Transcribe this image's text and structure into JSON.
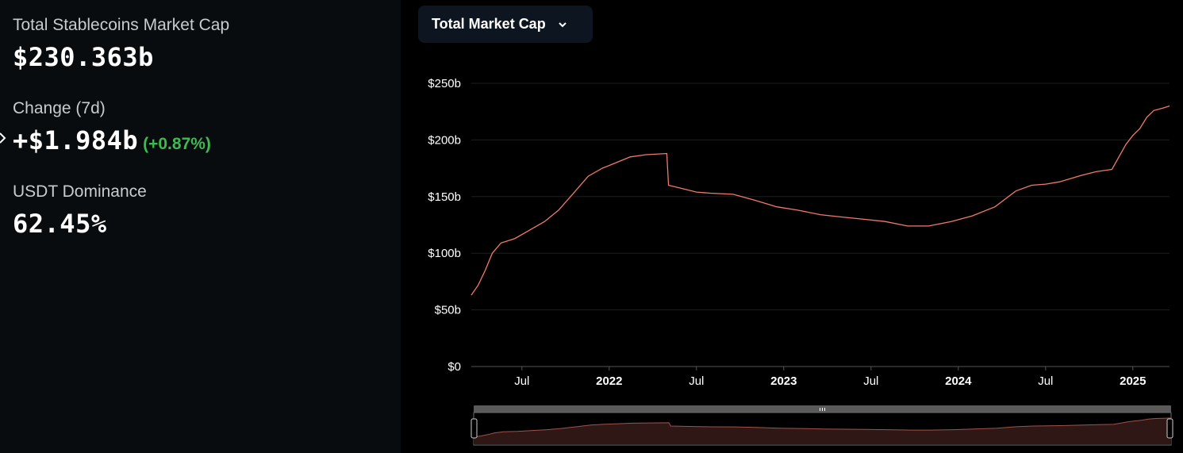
{
  "stats": {
    "market_cap_label": "Total Stablecoins Market Cap",
    "market_cap_value": "$230.363b",
    "change_label": "Change (7d)",
    "change_value": "+$1.984b",
    "change_pct": "(+0.87%)",
    "dominance_label": "USDT Dominance",
    "dominance_value": "62.45%"
  },
  "dropdown": {
    "label": "Total Market Cap",
    "icon": "chevron-down-icon"
  },
  "colors": {
    "line": "#f07a6b",
    "positive": "#3fb950",
    "panel": "#090c0e"
  },
  "chart_data": {
    "type": "line",
    "title": "Total Market Cap",
    "unit": "$b",
    "ylim": [
      0,
      250
    ],
    "y_ticks": [
      {
        "value": 0,
        "label": "$0"
      },
      {
        "value": 50,
        "label": "$50b"
      },
      {
        "value": 100,
        "label": "$100b"
      },
      {
        "value": 150,
        "label": "$150b"
      },
      {
        "value": 200,
        "label": "$200b"
      },
      {
        "value": 250,
        "label": "$250b"
      }
    ],
    "x_range": [
      2021.21,
      2025.21
    ],
    "x_ticks": [
      {
        "value": 2021.5,
        "label": "Jul",
        "bold": false
      },
      {
        "value": 2022.0,
        "label": "2022",
        "bold": true
      },
      {
        "value": 2022.5,
        "label": "Jul",
        "bold": false
      },
      {
        "value": 2023.0,
        "label": "2023",
        "bold": true
      },
      {
        "value": 2023.5,
        "label": "Jul",
        "bold": false
      },
      {
        "value": 2024.0,
        "label": "2024",
        "bold": true
      },
      {
        "value": 2024.5,
        "label": "Jul",
        "bold": false
      },
      {
        "value": 2025.0,
        "label": "2025",
        "bold": true
      }
    ],
    "series": [
      {
        "name": "Total Stablecoins Market Cap",
        "points": [
          [
            2021.21,
            63
          ],
          [
            2021.25,
            72
          ],
          [
            2021.29,
            85
          ],
          [
            2021.33,
            100
          ],
          [
            2021.38,
            109
          ],
          [
            2021.46,
            113
          ],
          [
            2021.54,
            120
          ],
          [
            2021.63,
            128
          ],
          [
            2021.71,
            138
          ],
          [
            2021.79,
            152
          ],
          [
            2021.88,
            168
          ],
          [
            2021.96,
            175
          ],
          [
            2022.04,
            180
          ],
          [
            2022.12,
            185
          ],
          [
            2022.21,
            187
          ],
          [
            2022.33,
            188
          ],
          [
            2022.34,
            160
          ],
          [
            2022.42,
            157
          ],
          [
            2022.5,
            154
          ],
          [
            2022.58,
            153
          ],
          [
            2022.71,
            152
          ],
          [
            2022.83,
            147
          ],
          [
            2022.96,
            141
          ],
          [
            2023.08,
            138
          ],
          [
            2023.21,
            134
          ],
          [
            2023.33,
            132
          ],
          [
            2023.46,
            130
          ],
          [
            2023.58,
            128
          ],
          [
            2023.71,
            124
          ],
          [
            2023.83,
            124
          ],
          [
            2023.96,
            128
          ],
          [
            2024.08,
            133
          ],
          [
            2024.21,
            141
          ],
          [
            2024.33,
            155
          ],
          [
            2024.42,
            160
          ],
          [
            2024.5,
            161
          ],
          [
            2024.58,
            163
          ],
          [
            2024.71,
            169
          ],
          [
            2024.79,
            172
          ],
          [
            2024.88,
            174
          ],
          [
            2024.92,
            185
          ],
          [
            2024.96,
            196
          ],
          [
            2025.0,
            204
          ],
          [
            2025.04,
            210
          ],
          [
            2025.08,
            220
          ],
          [
            2025.12,
            226
          ],
          [
            2025.17,
            228
          ],
          [
            2025.21,
            230
          ]
        ]
      }
    ]
  }
}
